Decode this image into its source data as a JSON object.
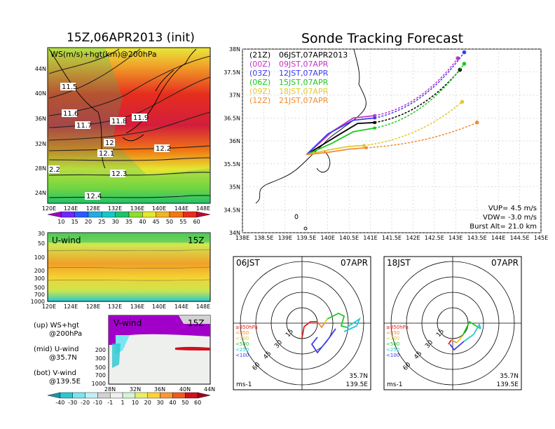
{
  "left": {
    "title": "15Z,06APR2013 (init)",
    "map": {
      "label": "WS(m/s)+hgt(km)@200hPa",
      "y_ticks": [
        "44N",
        "40N",
        "36N",
        "32N",
        "28N",
        "24N"
      ],
      "x_ticks": [
        "120E",
        "124E",
        "128E",
        "132E",
        "136E",
        "140E",
        "144E",
        "148E"
      ],
      "contour_labels": [
        "11.5",
        "11.6",
        "11.7",
        "11.8",
        "11.9",
        "12",
        "12.1",
        "12.2",
        "12.3",
        "12.4",
        "2.2"
      ]
    },
    "colorbar1": {
      "ticks": [
        "10",
        "15",
        "20",
        "25",
        "30",
        "35",
        "40",
        "45",
        "50",
        "55",
        "60"
      ],
      "colors": [
        "#a000c8",
        "#6e28ff",
        "#2b5bff",
        "#27a9e1",
        "#14c8c8",
        "#22c26a",
        "#8edc32",
        "#e6e632",
        "#f0b428",
        "#f07814",
        "#e62d1e",
        "#c8002d"
      ]
    },
    "uwind": {
      "label": "U-wind",
      "time": "15Z",
      "y_ticks": [
        "30",
        "50",
        "100",
        "200",
        "300",
        "500",
        "700",
        "1000"
      ],
      "x_ticks": [
        "120E",
        "124E",
        "128E",
        "132E",
        "136E",
        "140E",
        "144E",
        "148E"
      ]
    },
    "vwind": {
      "label": "V-wind",
      "time": "15Z",
      "y_ticks": [
        "200",
        "300",
        "500",
        "700",
        "1000"
      ],
      "x_ticks": [
        "28N",
        "32N",
        "36N",
        "40N",
        "44N"
      ]
    },
    "legend": [
      {
        "a": "(up) WS+hgt",
        "b": "@200hPa"
      },
      {
        "a": "(mid) U-wind",
        "b": "@35.7N"
      },
      {
        "a": "(bot) V-wind",
        "b": "@139.5E"
      }
    ],
    "colorbar2": {
      "ticks": [
        "-40",
        "-30",
        "-20",
        "-10",
        "-1",
        "1",
        "10",
        "20",
        "30",
        "40",
        "50",
        "60"
      ],
      "colors": [
        "#1e96a0",
        "#28c8d2",
        "#78e6f0",
        "#bef0f5",
        "#d2d2d2",
        "#f0f0f0",
        "#d2f5d2",
        "#e6f064",
        "#ffd232",
        "#ff9632",
        "#f05a1e",
        "#d20f1e",
        "#a0001e"
      ]
    }
  },
  "main": {
    "title": "Sonde Tracking Forecast",
    "y_ticks": [
      "38N",
      "37.5N",
      "37N",
      "36.5N",
      "36N",
      "35.5N",
      "35N",
      "34.5N",
      "34N"
    ],
    "x_ticks": [
      "138E",
      "138.5E",
      "139E",
      "139.5E",
      "140E",
      "140.5E",
      "141E",
      "141.5E",
      "142E",
      "142.5E",
      "143E",
      "143.5E",
      "144E",
      "144.5E",
      "145E"
    ],
    "legend": [
      {
        "code": "(21Z)",
        "time": "06JST,07APR2013",
        "color": "#000000"
      },
      {
        "code": "(00Z)",
        "time": "09JST,07APR",
        "color": "#c832c8"
      },
      {
        "code": "(03Z)",
        "time": "12JST,07APR",
        "color": "#3c3cf0"
      },
      {
        "code": "(06Z)",
        "time": "15JST,07APR",
        "color": "#1ec81e"
      },
      {
        "code": "(09Z)",
        "time": "18JST,07APR",
        "color": "#e6c828"
      },
      {
        "code": "(12Z)",
        "time": "21JST,07APR",
        "color": "#f08c32"
      }
    ],
    "params": {
      "vup": "VUP= 4.5 m/s",
      "vdw": "VDW= -3.0 m/s",
      "burst": "Burst Alt= 21.0 km"
    }
  },
  "chart_data": {
    "type": "line",
    "title": "Sonde Tracking Forecast",
    "x_range": [
      138,
      145
    ],
    "y_range": [
      34,
      38
    ],
    "launch": [
      139.5,
      35.7
    ],
    "series": [
      {
        "name": "(21Z) 06JST,07APR2013",
        "color": "#000000",
        "burst": [
          141.1,
          36.4
        ],
        "end": [
          143.1,
          37.55
        ],
        "ascent": [
          [
            139.5,
            35.7
          ],
          [
            140.2,
            36.1
          ],
          [
            140.7,
            36.38
          ],
          [
            141.1,
            36.4
          ]
        ]
      },
      {
        "name": "(00Z) 09JST,07APR",
        "color": "#c832c8",
        "burst": [
          141.1,
          36.55
        ],
        "end": [
          143.05,
          37.8
        ],
        "ascent": [
          [
            139.5,
            35.7
          ],
          [
            140.1,
            36.2
          ],
          [
            140.6,
            36.5
          ],
          [
            141.1,
            36.55
          ]
        ]
      },
      {
        "name": "(03Z) 12JST,07APR",
        "color": "#3c3cf0",
        "burst": [
          141.1,
          36.5
        ],
        "end": [
          143.2,
          37.93
        ],
        "ascent": [
          [
            139.5,
            35.7
          ],
          [
            140.0,
            36.15
          ],
          [
            140.6,
            36.45
          ],
          [
            141.1,
            36.5
          ]
        ]
      },
      {
        "name": "(06Z) 15JST,07APR",
        "color": "#1ec81e",
        "burst": [
          141.1,
          36.28
        ],
        "end": [
          143.2,
          37.68
        ],
        "ascent": [
          [
            139.5,
            35.7
          ],
          [
            140.1,
            35.95
          ],
          [
            140.6,
            36.2
          ],
          [
            141.1,
            36.28
          ]
        ]
      },
      {
        "name": "(09Z) 18JST,07APR",
        "color": "#e6c828",
        "burst": [
          140.85,
          35.9
        ],
        "end": [
          143.15,
          36.85
        ],
        "ascent": [
          [
            139.5,
            35.7
          ],
          [
            140.0,
            35.8
          ],
          [
            140.5,
            35.88
          ],
          [
            140.85,
            35.9
          ]
        ]
      },
      {
        "name": "(12Z) 21JST,07APR",
        "color": "#f08c32",
        "burst": [
          140.9,
          35.85
        ],
        "end": [
          143.5,
          36.4
        ],
        "ascent": [
          [
            139.5,
            35.7
          ],
          [
            140.0,
            35.75
          ],
          [
            140.5,
            35.82
          ],
          [
            140.9,
            35.85
          ]
        ]
      }
    ]
  },
  "hodo1": {
    "time": "06JST",
    "date": "07APR",
    "ring_labels": [
      "15",
      "30",
      "45",
      "60"
    ],
    "unit": "ms-1",
    "lat": "35.7N",
    "lon": "139.5E",
    "levels": [
      {
        "t": "≥850hPa",
        "c": "#e61e1e"
      },
      {
        "t": "<850",
        "c": "#f08c32"
      },
      {
        "t": "<700",
        "c": "#e6c828"
      },
      {
        "t": "<500",
        "c": "#1ec81e"
      },
      {
        "t": "<250",
        "c": "#28c8d2"
      },
      {
        "t": "<100",
        "c": "#3c3cf0"
      }
    ]
  },
  "hodo2": {
    "time": "18JST",
    "date": "07APR",
    "ring_labels": [
      "15",
      "30",
      "45",
      "60"
    ],
    "unit": "ms-1",
    "lat": "35.7N",
    "lon": "139.5E",
    "levels": [
      {
        "t": "≥850hPa",
        "c": "#e61e1e"
      },
      {
        "t": "<850",
        "c": "#f08c32"
      },
      {
        "t": "<700",
        "c": "#e6c828"
      },
      {
        "t": "<500",
        "c": "#1ec81e"
      },
      {
        "t": "<250",
        "c": "#28c8d2"
      },
      {
        "t": "<100",
        "c": "#3c3cf0"
      }
    ]
  }
}
